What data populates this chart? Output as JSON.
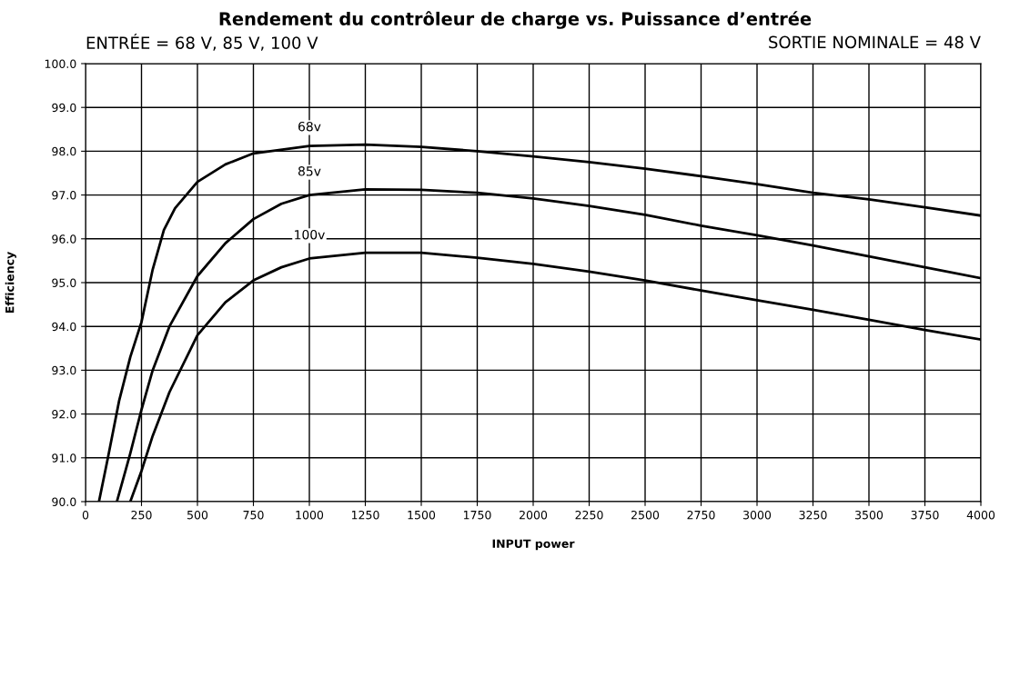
{
  "chart_data": {
    "type": "line",
    "title": "Rendement du contrôleur de charge vs. Puissance d’entrée",
    "xlabel": "INPUT power",
    "ylabel": "Efficiency",
    "annotations": [
      "ENTRÉE = 68 V, 85 V, 100 V",
      "SORTIE NOMINALE = 48 V"
    ],
    "series": [
      {
        "name": "68v",
        "color": "#000000",
        "x": [
          60,
          100,
          150,
          200,
          250,
          300,
          350,
          400,
          500,
          625,
          750,
          1000,
          1250,
          1500,
          1750,
          2000,
          2250,
          2500,
          2750,
          3000,
          3250,
          3500,
          3750,
          4000
        ],
        "values": [
          90,
          91,
          92.3,
          93.3,
          94.1,
          95.3,
          96.2,
          96.7,
          97.3,
          97.7,
          97.95,
          98.12,
          98.15,
          98.1,
          98.0,
          97.88,
          97.75,
          97.6,
          97.43,
          97.25,
          97.05,
          96.9,
          96.72,
          96.53
        ]
      },
      {
        "name": "85v",
        "color": "#000000",
        "x": [
          140,
          200,
          250,
          300,
          375,
          500,
          625,
          750,
          875,
          1000,
          1250,
          1500,
          1750,
          2000,
          2250,
          2500,
          2750,
          3000,
          3250,
          3500,
          3750,
          4000
        ],
        "values": [
          90,
          91.1,
          92.1,
          93.0,
          94.0,
          95.15,
          95.9,
          96.45,
          96.8,
          97.0,
          97.13,
          97.12,
          97.05,
          96.92,
          96.75,
          96.55,
          96.3,
          96.08,
          95.85,
          95.6,
          95.35,
          95.1
        ]
      },
      {
        "name": "100v",
        "color": "#000000",
        "x": [
          200,
          250,
          300,
          375,
          500,
          625,
          750,
          875,
          1000,
          1250,
          1500,
          1750,
          2000,
          2250,
          2500,
          2750,
          3000,
          3250,
          3500,
          3750,
          4000
        ],
        "values": [
          90,
          90.7,
          91.5,
          92.5,
          93.8,
          94.55,
          95.05,
          95.35,
          95.55,
          95.68,
          95.68,
          95.57,
          95.43,
          95.25,
          95.05,
          94.82,
          94.6,
          94.38,
          94.15,
          93.92,
          93.7
        ]
      }
    ],
    "xlim": [
      0,
      4000
    ],
    "xticks": [
      0,
      250,
      500,
      750,
      1000,
      1250,
      1500,
      1750,
      2000,
      2250,
      2500,
      2750,
      3000,
      3250,
      3500,
      3750,
      4000
    ],
    "ylim": [
      90,
      100
    ],
    "yticks": [
      {
        "value": 90,
        "label": "90.0"
      },
      {
        "value": 91,
        "label": "91.0"
      },
      {
        "value": 92,
        "label": "92.0"
      },
      {
        "value": 93,
        "label": "93.0"
      },
      {
        "value": 94,
        "label": "94.0"
      },
      {
        "value": 95,
        "label": "95.0"
      },
      {
        "value": 96,
        "label": "96.0"
      },
      {
        "value": 97,
        "label": "97.0"
      },
      {
        "value": 98,
        "label": "98.0"
      },
      {
        "value": 99,
        "label": "99.0"
      },
      {
        "value": 100,
        "label": "100.0"
      }
    ],
    "grid": true,
    "legend": false,
    "marker": "none",
    "line_style": "solid"
  }
}
